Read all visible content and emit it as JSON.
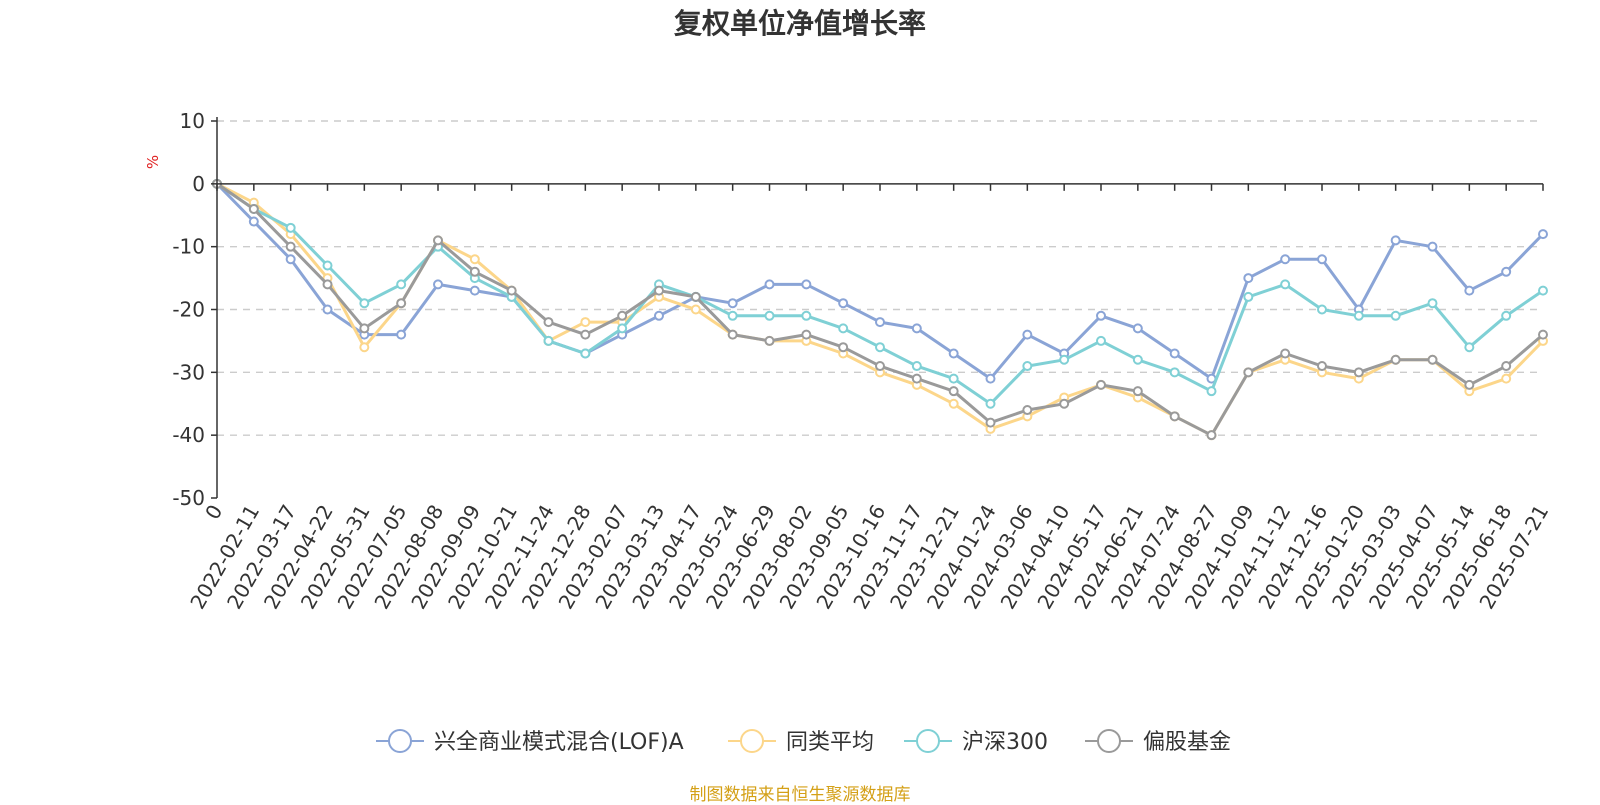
{
  "chart_data": {
    "type": "line",
    "title": "复权单位净值增长率",
    "ylabel": "%",
    "ylim": [
      -50,
      10
    ],
    "yticks": [
      10,
      0,
      -10,
      -20,
      -30,
      -40,
      -50
    ],
    "grid": true,
    "legend_position": "bottom",
    "xtick_labels": [
      "0",
      "2022-02-11",
      "2022-03-17",
      "2022-04-22",
      "2022-05-31",
      "2022-07-05",
      "2022-08-08",
      "2022-09-09",
      "2022-10-21",
      "2022-11-24",
      "2022-12-28",
      "2023-02-07",
      "2023-03-13",
      "2023-04-17",
      "2023-05-24",
      "2023-06-29",
      "2023-08-02",
      "2023-09-05",
      "2023-10-16",
      "2023-11-17",
      "2023-12-21",
      "2024-01-24",
      "2024-03-06",
      "2024-04-10",
      "2024-05-17",
      "2024-06-21",
      "2024-07-24",
      "2024-08-27",
      "2024-10-09",
      "2024-11-12",
      "2024-12-16",
      "2025-01-20",
      "2025-03-03",
      "2025-04-07",
      "2025-05-14",
      "2025-06-18",
      "2025-07-21"
    ],
    "series": [
      {
        "name": "兴全商业模式混合(LOF)A",
        "color": "#8aa4d6",
        "values": [
          0,
          -6,
          -12,
          -20,
          -24,
          -24,
          -16,
          -17,
          -18,
          -25,
          -27,
          -24,
          -21,
          -18,
          -19,
          -16,
          -16,
          -19,
          -22,
          -23,
          -27,
          -31,
          -24,
          -27,
          -21,
          -23,
          -27,
          -31,
          -15,
          -12,
          -12,
          -20,
          -9,
          -10,
          -17,
          -14,
          -8
        ]
      },
      {
        "name": "同类平均",
        "color": "#fcd68a",
        "values": [
          0,
          -3,
          -8,
          -15,
          -26,
          -19,
          -9,
          -12,
          -17,
          -25,
          -22,
          -22,
          -18,
          -20,
          -24,
          -25,
          -25,
          -27,
          -30,
          -32,
          -35,
          -39,
          -37,
          -34,
          -32,
          -34,
          -37,
          -40,
          -30,
          -28,
          -30,
          -31,
          -28,
          -28,
          -33,
          -31,
          -25
        ]
      },
      {
        "name": "沪深300",
        "color": "#7fd0d5",
        "values": [
          0,
          -4,
          -7,
          -13,
          -19,
          -16,
          -10,
          -15,
          -18,
          -25,
          -27,
          -23,
          -16,
          -18,
          -21,
          -21,
          -21,
          -23,
          -26,
          -29,
          -31,
          -35,
          -29,
          -28,
          -25,
          -28,
          -30,
          -33,
          -18,
          -16,
          -20,
          -21,
          -21,
          -19,
          -26,
          -21,
          -17
        ]
      },
      {
        "name": "偏股基金",
        "color": "#9a9a9a",
        "values": [
          0,
          -4,
          -10,
          -16,
          -23,
          -19,
          -9,
          -14,
          -17,
          -22,
          -24,
          -21,
          -17,
          -18,
          -24,
          -25,
          -24,
          -26,
          -29,
          -31,
          -33,
          -38,
          -36,
          -35,
          -32,
          -33,
          -37,
          -40,
          -30,
          -27,
          -29,
          -30,
          -28,
          -28,
          -32,
          -29,
          -24
        ]
      }
    ]
  },
  "source": {
    "text": "制图数据来自恒生聚源数据库",
    "color": "#d4a017"
  },
  "colors": {
    "ylabel": "#e02020",
    "grid": "#cccccc",
    "axis": "#333333"
  }
}
